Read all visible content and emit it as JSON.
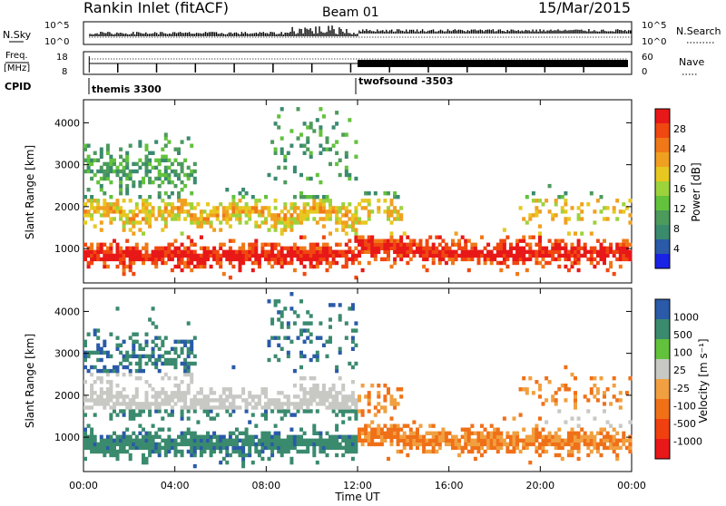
{
  "header": {
    "station": "Rankin Inlet (fitACF)",
    "beam": "Beam 01",
    "date": "15/Mar/2015"
  },
  "panels": {
    "nsky_label": "N.Sky",
    "nsky_ticks": [
      "10^5",
      "10^0"
    ],
    "nsearch_label": "N.Search",
    "nsearch_ticks": [
      "10^5",
      "10^0"
    ],
    "freq_label_1": "Freq.",
    "freq_label_2": "[MHz]",
    "freq_ticks": [
      "18",
      "8"
    ],
    "nave_label": "Nave",
    "nave_ticks": [
      "60",
      "0"
    ],
    "cpid_label": "CPID",
    "cpid_modes": [
      {
        "name": "themis 3300",
        "start_hour": 0.25
      },
      {
        "name": "twofsound -3503",
        "start_hour": 12.0
      }
    ]
  },
  "chart_data": [
    {
      "type": "heatmap",
      "quantity": "Power",
      "xlabel": "",
      "ylabel": "Slant Range [km]",
      "colorbar_label": "Power [dB]",
      "colorbar_ticks": [
        "28",
        "24",
        "20",
        "16",
        "12",
        "8",
        "4"
      ],
      "colors_low_to_high": [
        "#1a22e6",
        "#2a5aa8",
        "#3a8a6e",
        "#4c9a5c",
        "#62c23c",
        "#9cd23c",
        "#e6c820",
        "#f0a020",
        "#f07818",
        "#f04810",
        "#e81818"
      ],
      "xlim": [
        0,
        24
      ],
      "ylim": [
        180,
        4550
      ],
      "yticks": [
        "1000",
        "2000",
        "3000",
        "4000"
      ],
      "xtick_values": [
        0,
        4,
        8,
        12,
        16,
        20,
        24
      ]
    },
    {
      "type": "heatmap",
      "quantity": "Velocity",
      "xlabel": "Time UT",
      "ylabel": "Slant Range [km]",
      "colorbar_label": "Velocity [m s⁻¹]",
      "colorbar_ticks": [
        "1000",
        "500",
        "100",
        "25",
        "-25",
        "-100",
        "-500",
        "-1000"
      ],
      "colors_low_to_high": [
        "#e81818",
        "#f04010",
        "#f07018",
        "#f0a040",
        "#c8c8c4",
        "#62c23c",
        "#3a8a6e",
        "#2a5aa8"
      ],
      "xlim": [
        0,
        24
      ],
      "ylim": [
        180,
        4550
      ],
      "yticks": [
        "1000",
        "2000",
        "3000",
        "4000"
      ],
      "xtick_labels": [
        "00:00",
        "04:00",
        "08:00",
        "12:00",
        "16:00",
        "20:00",
        "00:00"
      ],
      "xtick_values": [
        0,
        4,
        8,
        12,
        16,
        20,
        24
      ]
    }
  ]
}
